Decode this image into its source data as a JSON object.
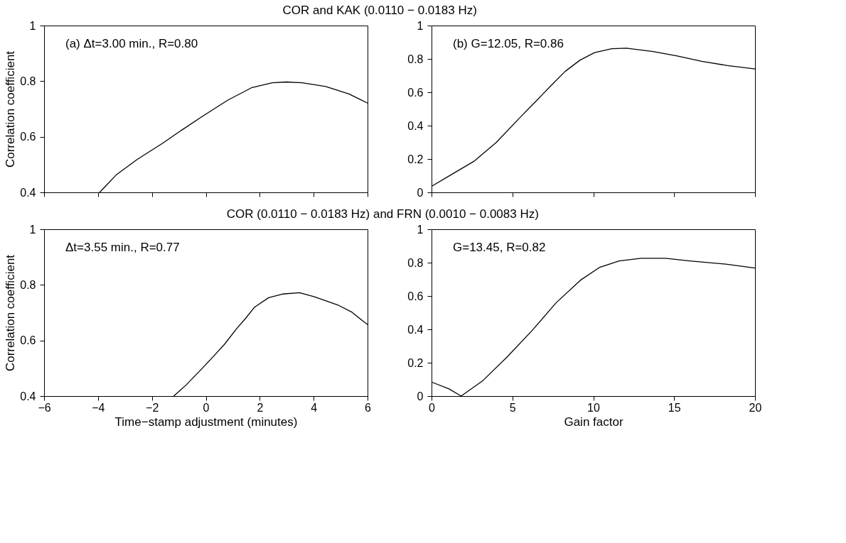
{
  "chart_data": [
    {
      "type": "line",
      "title": "COR and KAK (0.0110 − 0.0183 Hz)",
      "ylabel": "Correlation coefficient",
      "annotations": [
        "(a) Δt=3.00 min., R=0.80"
      ],
      "xlim": [
        -6,
        6
      ],
      "xticks": [
        -6,
        -4,
        -2,
        0,
        2,
        4,
        6
      ],
      "ylim": [
        0.4,
        1
      ],
      "yticks": [
        0.4,
        0.6,
        0.8,
        1
      ],
      "tick_labels": "y",
      "series": [
        {
          "color": "#000000",
          "x": [
            -3.94,
            -3.32,
            -2.55,
            -1.6,
            -1.0,
            -0.13,
            0.82,
            1.69,
            2.46,
            2.98,
            3.58,
            4.45,
            5.31,
            6.0
          ],
          "values": [
            0.4,
            0.463,
            0.518,
            0.577,
            0.617,
            0.673,
            0.732,
            0.776,
            0.794,
            0.797,
            0.794,
            0.781,
            0.754,
            0.721
          ]
        }
      ]
    },
    {
      "type": "line",
      "annotations": [
        "(b) G=12.05, R=0.86"
      ],
      "xlim": [
        0,
        20
      ],
      "xticks": [
        0,
        5,
        10,
        15,
        20
      ],
      "ylim": [
        0,
        1
      ],
      "yticks": [
        0,
        0.2,
        0.4,
        0.6,
        0.8,
        1
      ],
      "tick_labels": "y",
      "series": [
        {
          "color": "#000000",
          "x": [
            0,
            1.29,
            2.65,
            4.0,
            5.53,
            6.44,
            7.35,
            8.26,
            9.17,
            10.08,
            11.14,
            12.05,
            13.7,
            15.2,
            16.7,
            18.3,
            20
          ],
          "values": [
            0.036,
            0.11,
            0.188,
            0.299,
            0.455,
            0.545,
            0.636,
            0.725,
            0.792,
            0.838,
            0.861,
            0.864,
            0.844,
            0.818,
            0.786,
            0.76,
            0.74
          ]
        }
      ]
    },
    {
      "type": "line",
      "title": "COR (0.0110 − 0.0183 Hz) and FRN (0.0010 − 0.0083 Hz)",
      "xlabel": "Time−stamp adjustment (minutes)",
      "ylabel": "Correlation coefficient",
      "annotations": [
        "Δt=3.55 min., R=0.77"
      ],
      "xlim": [
        -6,
        6
      ],
      "xticks": [
        -6,
        -4,
        -2,
        0,
        2,
        4,
        6
      ],
      "ylim": [
        0.4,
        1
      ],
      "yticks": [
        0.4,
        0.6,
        0.8,
        1
      ],
      "series": [
        {
          "color": "#000000",
          "x": [
            -1.19,
            -0.75,
            -0.24,
            0.19,
            0.7,
            1.13,
            1.47,
            1.81,
            2.33,
            2.84,
            3.48,
            4.03,
            4.89,
            5.4,
            6.0
          ],
          "values": [
            0.4,
            0.438,
            0.489,
            0.533,
            0.587,
            0.641,
            0.679,
            0.72,
            0.754,
            0.767,
            0.772,
            0.757,
            0.728,
            0.703,
            0.657
          ]
        }
      ]
    },
    {
      "type": "line",
      "xlabel": "Gain factor",
      "annotations": [
        "G=13.45, R=0.82"
      ],
      "xlim": [
        0,
        20
      ],
      "xticks": [
        0,
        5,
        10,
        15,
        20
      ],
      "ylim": [
        0,
        1
      ],
      "yticks": [
        0,
        0.2,
        0.4,
        0.6,
        0.8,
        1
      ],
      "series": [
        {
          "color": "#000000",
          "x": [
            0,
            1.08,
            1.83,
            3.19,
            4.69,
            6.2,
            7.7,
            9.2,
            10.4,
            11.6,
            12.96,
            14.47,
            15.97,
            18.2,
            20
          ],
          "values": [
            0.084,
            0.043,
            0,
            0.094,
            0.236,
            0.391,
            0.559,
            0.694,
            0.772,
            0.81,
            0.826,
            0.826,
            0.81,
            0.791,
            0.768
          ]
        }
      ]
    }
  ]
}
